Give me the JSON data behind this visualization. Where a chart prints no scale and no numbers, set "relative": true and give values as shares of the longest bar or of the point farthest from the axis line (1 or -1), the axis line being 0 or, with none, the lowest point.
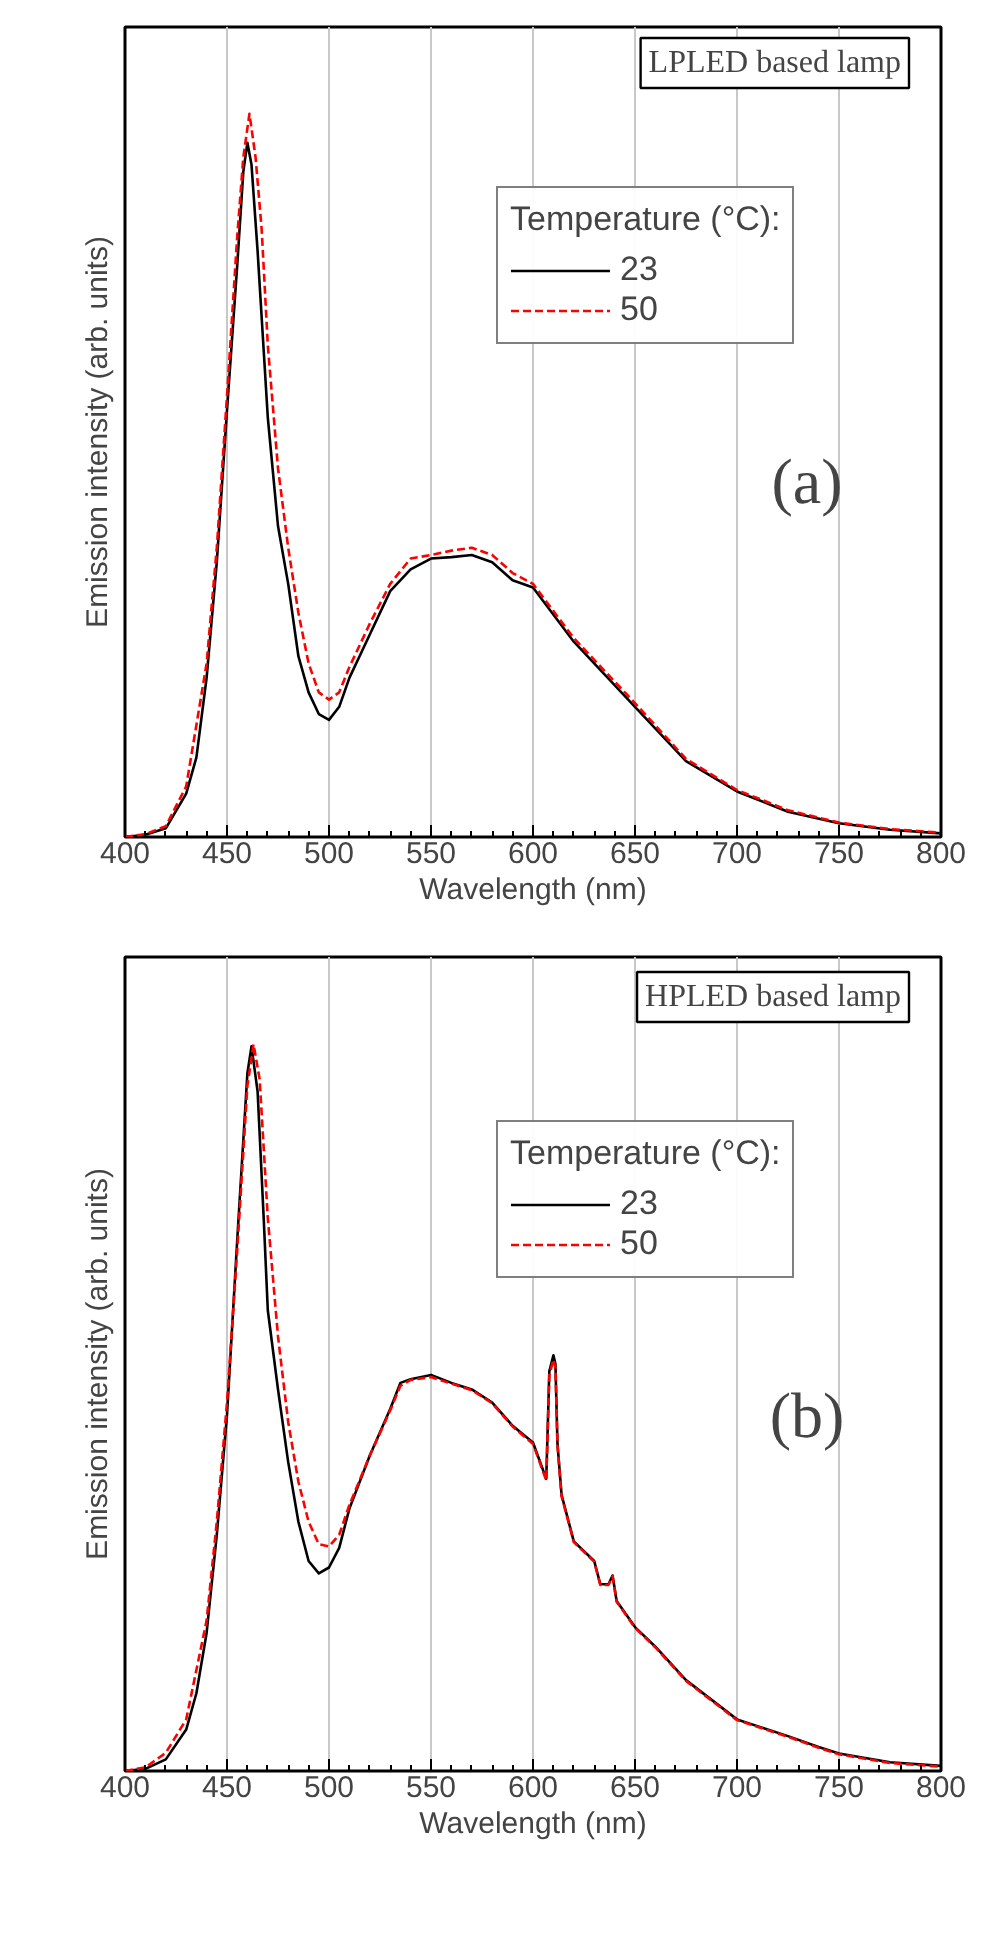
{
  "chart_data": [
    {
      "type": "line",
      "relative": true,
      "xlabel": "Wavelength (nm)",
      "ylabel": "Emission intensity (arb. units)",
      "legend_title": "Temperature (°C):",
      "annotations": [
        "LPLED based lamp",
        "(a)"
      ],
      "xlim": [
        400,
        800
      ],
      "xticks": [
        400,
        450,
        500,
        550,
        600,
        650,
        700,
        750,
        800
      ],
      "grid": "x",
      "legend": "top right",
      "series": [
        {
          "name": "23",
          "color": "#000000",
          "line_style": "solid",
          "x": [
            400,
            410,
            420,
            430,
            435,
            440,
            445,
            450,
            455,
            458,
            460,
            462,
            465,
            470,
            475,
            480,
            485,
            490,
            495,
            500,
            505,
            510,
            520,
            530,
            540,
            550,
            560,
            570,
            580,
            590,
            600,
            620,
            650,
            675,
            700,
            725,
            750,
            775,
            800
          ],
          "values": [
            0,
            0.003,
            0.012,
            0.06,
            0.11,
            0.22,
            0.38,
            0.59,
            0.79,
            0.92,
            0.96,
            0.93,
            0.81,
            0.58,
            0.43,
            0.35,
            0.25,
            0.2,
            0.17,
            0.162,
            0.18,
            0.22,
            0.28,
            0.34,
            0.37,
            0.385,
            0.387,
            0.39,
            0.38,
            0.355,
            0.345,
            0.27,
            0.18,
            0.105,
            0.063,
            0.035,
            0.019,
            0.01,
            0.005
          ]
        },
        {
          "name": "50",
          "color": "#ff0000",
          "line_style": "dashed",
          "x": [
            400,
            410,
            420,
            430,
            440,
            445,
            450,
            455,
            458,
            461,
            464,
            467,
            470,
            475,
            480,
            485,
            490,
            495,
            500,
            505,
            510,
            520,
            530,
            540,
            550,
            560,
            570,
            580,
            590,
            600,
            620,
            650,
            675,
            700,
            725,
            750,
            775,
            800
          ],
          "values": [
            0,
            0.004,
            0.015,
            0.07,
            0.24,
            0.4,
            0.61,
            0.83,
            0.94,
            1,
            0.94,
            0.84,
            0.68,
            0.51,
            0.4,
            0.31,
            0.24,
            0.2,
            0.19,
            0.2,
            0.235,
            0.295,
            0.35,
            0.385,
            0.39,
            0.396,
            0.4,
            0.39,
            0.365,
            0.35,
            0.275,
            0.185,
            0.108,
            0.065,
            0.037,
            0.02,
            0.011,
            0.006
          ]
        }
      ]
    },
    {
      "type": "line",
      "relative": true,
      "xlabel": "Wavelength (nm)",
      "ylabel": "Emission intensity (arb. units)",
      "legend_title": "Temperature (°C):",
      "annotations": [
        "HPLED based lamp",
        "(b)"
      ],
      "xlim": [
        400,
        800
      ],
      "xticks": [
        400,
        450,
        500,
        550,
        600,
        650,
        700,
        750,
        800
      ],
      "grid": "x",
      "legend": "top right",
      "series": [
        {
          "name": "23",
          "color": "#000000",
          "line_style": "solid",
          "x": [
            400,
            410,
            420,
            430,
            435,
            440,
            445,
            450,
            455,
            460,
            462,
            465,
            468,
            470,
            475,
            480,
            485,
            490,
            495,
            500,
            505,
            510,
            520,
            530,
            535,
            540,
            550,
            560,
            570,
            580,
            590,
            600,
            606.5,
            608,
            610,
            611,
            612,
            614,
            620,
            630,
            633,
            637,
            639,
            641,
            650,
            660,
            675,
            700,
            725,
            740,
            750,
            775,
            800
          ],
          "values": [
            0,
            0.003,
            0.016,
            0.057,
            0.107,
            0.19,
            0.325,
            0.49,
            0.73,
            0.96,
            0.997,
            0.935,
            0.76,
            0.634,
            0.525,
            0.425,
            0.343,
            0.289,
            0.272,
            0.28,
            0.307,
            0.361,
            0.434,
            0.498,
            0.534,
            0.539,
            0.545,
            0.534,
            0.525,
            0.507,
            0.475,
            0.452,
            0.402,
            0.55,
            0.572,
            0.56,
            0.45,
            0.38,
            0.316,
            0.289,
            0.257,
            0.257,
            0.269,
            0.234,
            0.198,
            0.171,
            0.125,
            0.071,
            0.048,
            0.033,
            0.024,
            0.012,
            0.007
          ]
        },
        {
          "name": "50",
          "color": "#ff0000",
          "line_style": "dashed",
          "x": [
            400,
            410,
            420,
            430,
            440,
            445,
            450,
            455,
            460,
            463,
            466,
            470,
            475,
            480,
            485,
            490,
            495,
            500,
            505,
            510,
            520,
            530,
            535,
            540,
            550,
            560,
            570,
            580,
            590,
            600,
            606.5,
            608,
            610,
            611,
            612,
            614,
            620,
            630,
            633,
            637,
            639,
            641,
            650,
            660,
            675,
            700,
            725,
            740,
            750,
            775,
            800
          ],
          "values": [
            0,
            0.005,
            0.025,
            0.071,
            0.207,
            0.343,
            0.507,
            0.716,
            0.943,
            1,
            0.952,
            0.761,
            0.598,
            0.48,
            0.398,
            0.343,
            0.312,
            0.309,
            0.325,
            0.366,
            0.434,
            0.496,
            0.53,
            0.538,
            0.542,
            0.533,
            0.524,
            0.506,
            0.474,
            0.45,
            0.4,
            0.545,
            0.566,
            0.555,
            0.448,
            0.378,
            0.315,
            0.288,
            0.256,
            0.256,
            0.268,
            0.233,
            0.197,
            0.17,
            0.124,
            0.07,
            0.047,
            0.032,
            0.023,
            0.011,
            0.006
          ]
        }
      ]
    }
  ]
}
